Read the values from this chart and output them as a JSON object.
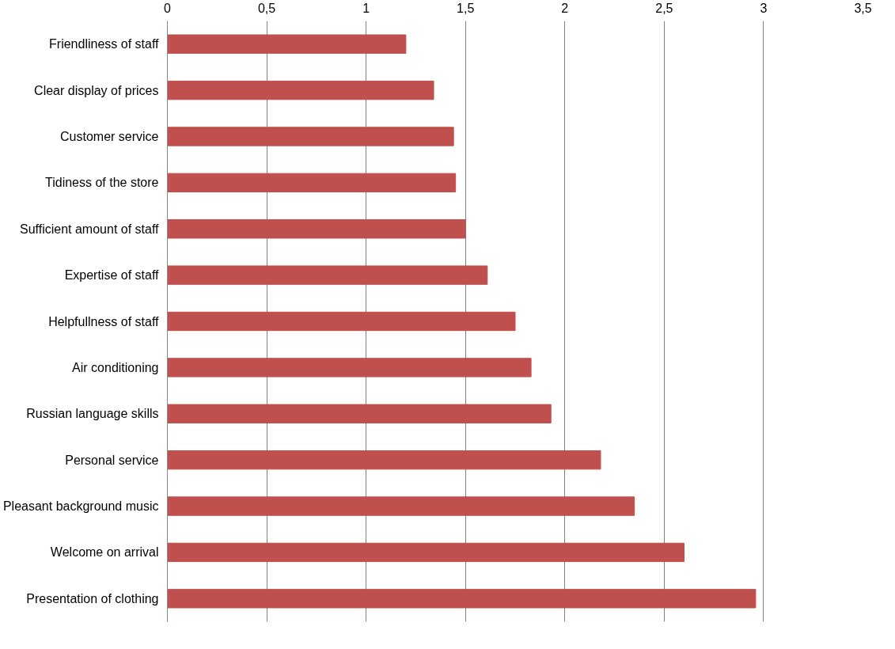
{
  "chart_data": {
    "type": "bar",
    "orientation": "horizontal",
    "categories": [
      "Friendliness of staff",
      "Clear display of prices",
      "Customer service",
      "Tidiness of the store",
      "Sufficient amount of staff",
      "Expertise of staff",
      "Helpfullness of staff",
      "Air conditioning",
      "Russian language skills",
      "Personal service",
      "Pleasant background music",
      "Welcome on arrival",
      "Presentation of clothing"
    ],
    "values": [
      1.2,
      1.34,
      1.44,
      1.45,
      1.5,
      1.61,
      1.75,
      1.83,
      1.93,
      2.18,
      2.35,
      2.6,
      2.96
    ],
    "color": "#c0504d",
    "xlim": [
      0,
      3.5
    ],
    "xticks": [
      0,
      {
        "value": 0.5,
        "label": "0,5"
      },
      1,
      {
        "value": 1.5,
        "label": "1,5"
      },
      2,
      {
        "value": 2.5,
        "label": "2,5"
      },
      3,
      {
        "value": 3.5,
        "label": "3,5"
      }
    ],
    "grid": "x"
  }
}
